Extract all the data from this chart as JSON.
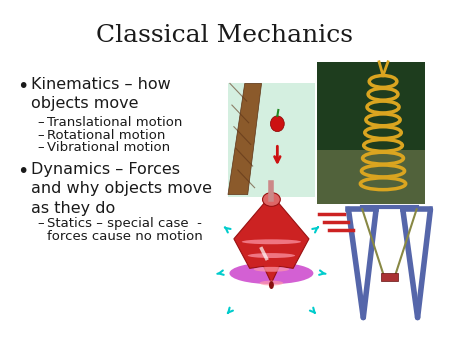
{
  "title": "Classical Mechanics",
  "title_fontsize": 18,
  "title_font": "serif",
  "background_color": "#ffffff",
  "text_color": "#1a1a1a",
  "bullet1_main": "Kinematics – how\nobjects move",
  "bullet1_sub": [
    "Translational motion",
    "Rotational motion",
    "Vibrational motion"
  ],
  "bullet2_main": "Dynamics – Forces\nand why objects move\nas they do",
  "bullet2_sub_line1": "Statics – special case  -",
  "bullet2_sub_line2": "forces cause no motion",
  "bullet_fontsize": 11.5,
  "sub_fontsize": 9.5,
  "tree_bg": "#d4efe0",
  "spring_bg": "#1e3d1e",
  "top_bg": "#ffffff",
  "swing_bg": "#ffffff",
  "tree_brown": "#8B5A2B",
  "tree_dark": "#5C3317",
  "apple_red": "#CC1111",
  "arrow_red": "#CC1111",
  "spring_gold": "#DAA520",
  "top_red": "#CC2222",
  "top_dark": "#991111",
  "top_pink": "#FF99AA",
  "shadow_purple": "#CC44CC",
  "cyan_color": "#00CCCC",
  "swing_blue": "#5566AA",
  "swing_seat": "#AA3333",
  "swing_rope": "#888844",
  "red_lines": "#CC2222"
}
